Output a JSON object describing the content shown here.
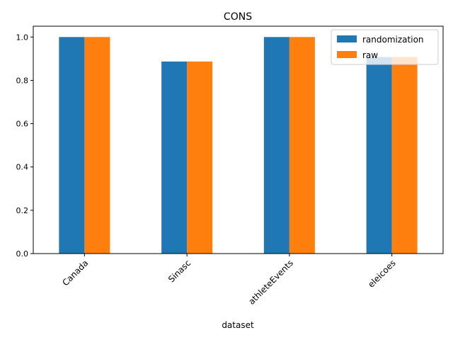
{
  "chart_data": {
    "type": "bar",
    "title": "CONS",
    "xlabel": "dataset",
    "ylabel": "",
    "categories": [
      "Canada",
      "Sinasc",
      "athleteEvents",
      "eleicoes"
    ],
    "series": [
      {
        "name": "randomization",
        "values": [
          1.0,
          0.887,
          1.0,
          0.908
        ],
        "color": "#1f77b4"
      },
      {
        "name": "raw",
        "values": [
          1.0,
          0.887,
          1.0,
          0.908
        ],
        "color": "#ff7f0e"
      }
    ],
    "ylim": [
      0,
      1.05
    ],
    "yticks": [
      "0.0",
      "0.2",
      "0.4",
      "0.6",
      "0.8",
      "1.0"
    ],
    "grid": false,
    "legend_position": "top-right"
  }
}
